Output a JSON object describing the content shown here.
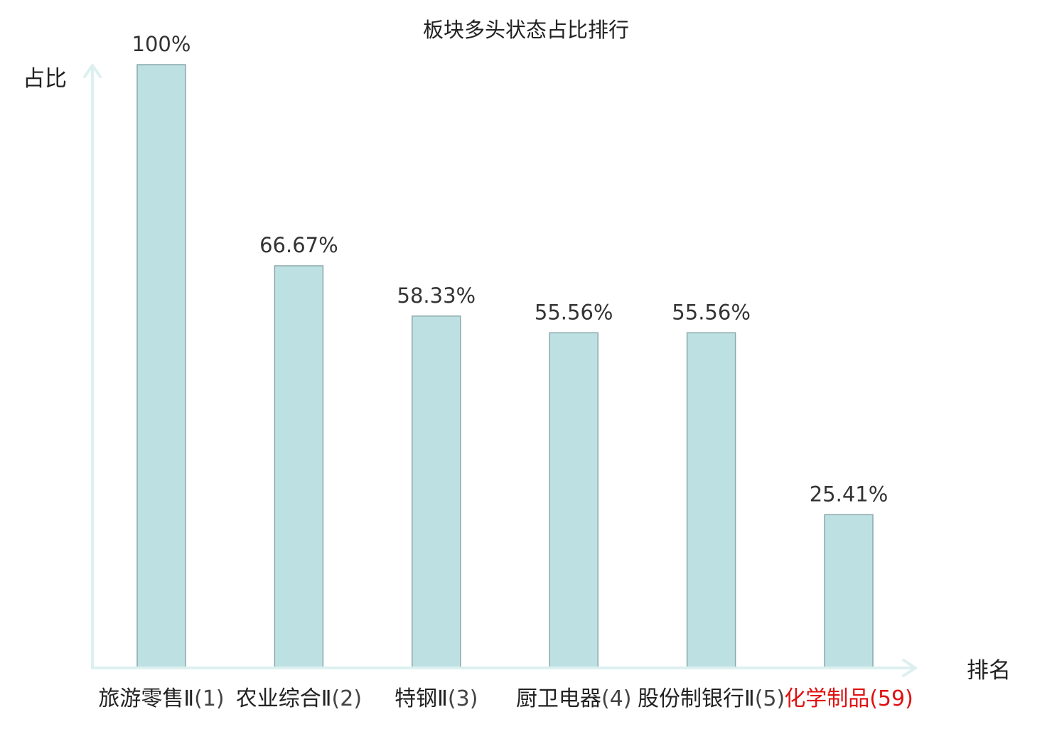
{
  "chart_data": {
    "type": "bar",
    "title": "板块多头状态占比排行",
    "ylabel": "占比",
    "xlabel": "排名",
    "ylim": [
      0,
      100
    ],
    "grid": false,
    "categories": [
      {
        "name": "旅游零售Ⅱ",
        "rank": "(1)",
        "highlight": false
      },
      {
        "name": "农业综合Ⅱ",
        "rank": "(2)",
        "highlight": false
      },
      {
        "name": "特钢Ⅱ",
        "rank": "(3)",
        "highlight": false
      },
      {
        "name": "厨卫电器",
        "rank": "(4)",
        "highlight": false
      },
      {
        "name": "股份制银行Ⅱ",
        "rank": "(5)",
        "highlight": false
      },
      {
        "name": "化学制品",
        "rank": "(59)",
        "highlight": true
      }
    ],
    "values": [
      100,
      66.67,
      58.33,
      55.56,
      55.56,
      25.41
    ],
    "value_labels": [
      "100%",
      "66.67%",
      "58.33%",
      "55.56%",
      "55.56%",
      "25.41%"
    ],
    "colors": {
      "bar_fill": "#bde0e3",
      "bar_stroke": "#8aa8ad",
      "axis": "#dcf0ef",
      "highlight": "#e01010"
    }
  }
}
